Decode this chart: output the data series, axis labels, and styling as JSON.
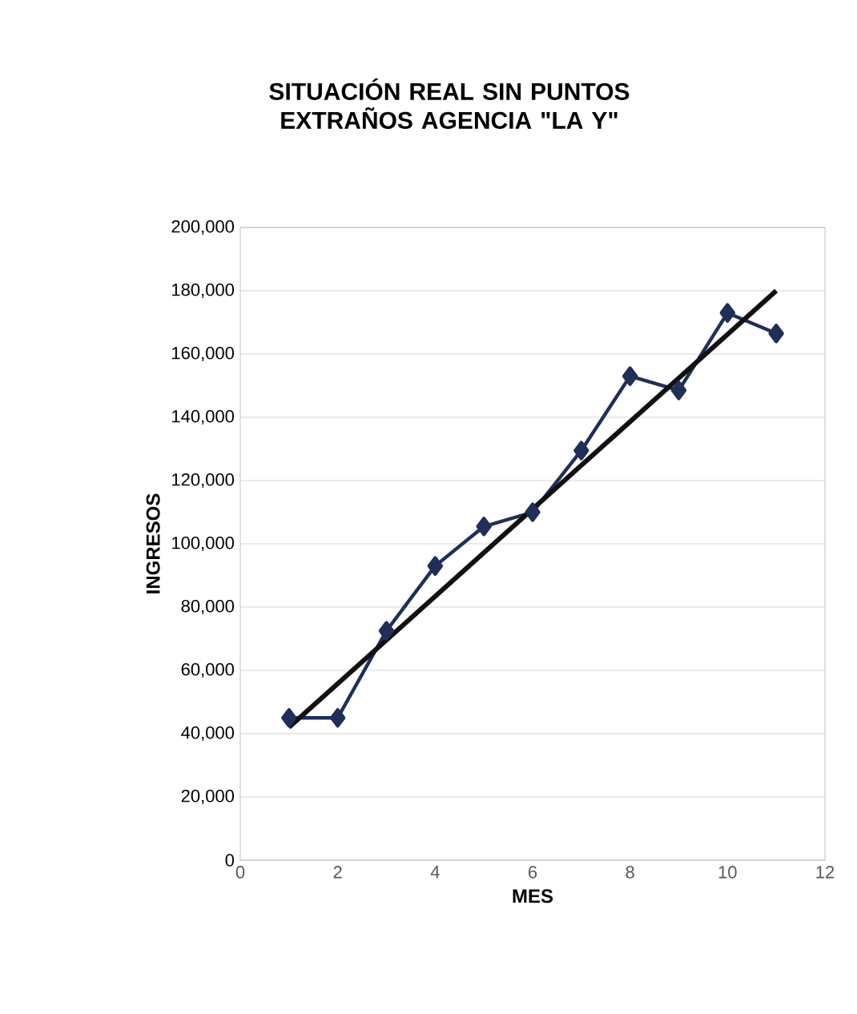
{
  "chart_data": {
    "type": "line",
    "title": "SITUACIÓN REAL SIN PUNTOS EXTRAÑOS AGENCIA \"LA Y\"",
    "xlabel": "MES",
    "ylabel": "INGRESOS",
    "x": [
      1,
      2,
      3,
      4,
      5,
      6,
      7,
      8,
      9,
      10,
      11
    ],
    "series": [
      {
        "color": "#1f2f5a",
        "marker": "diamond",
        "values": [
          45000,
          45000,
          72500,
          93000,
          105500,
          110000,
          129500,
          153000,
          148500,
          173000,
          166500
        ]
      },
      {
        "color": "#111111",
        "marker": "none",
        "x": [
          1,
          11
        ],
        "values": [
          42000,
          180000
        ]
      }
    ],
    "xlim": [
      0,
      12
    ],
    "xticks": [
      0,
      2,
      4,
      6,
      8,
      10,
      12
    ],
    "ylim": [
      0,
      200000
    ],
    "yticks": [
      {
        "value": 0,
        "label": "0"
      },
      {
        "value": 20000,
        "label": "20,000"
      },
      {
        "value": 40000,
        "label": "40,000"
      },
      {
        "value": 60000,
        "label": "60,000"
      },
      {
        "value": 80000,
        "label": "80,000"
      },
      {
        "value": 100000,
        "label": "100,000"
      },
      {
        "value": 120000,
        "label": "120,000"
      },
      {
        "value": 140000,
        "label": "140,000"
      },
      {
        "value": 160000,
        "label": "160,000"
      },
      {
        "value": 180000,
        "label": "180,000"
      },
      {
        "value": 200000,
        "label": "200,000"
      }
    ],
    "grid": "y"
  }
}
